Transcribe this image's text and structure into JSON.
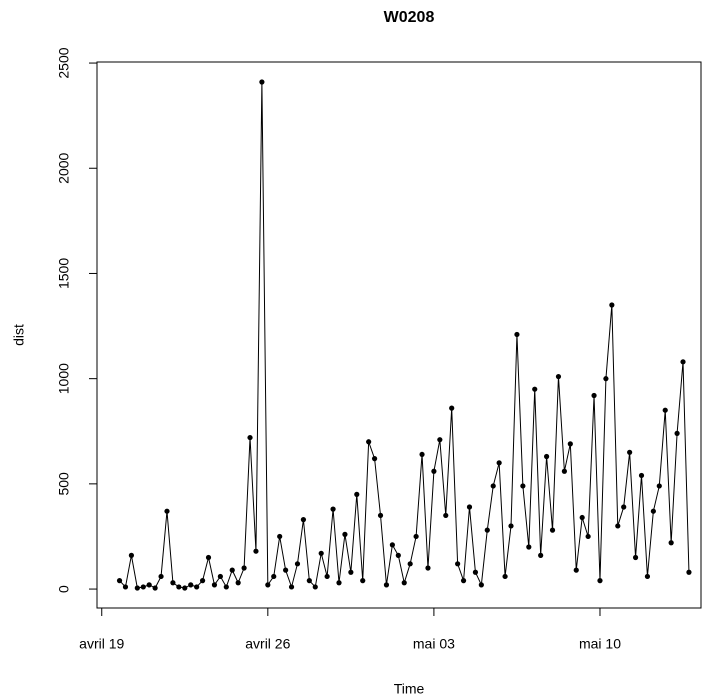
{
  "chart_data": {
    "type": "line",
    "title": "W0208",
    "x_label": "Time",
    "y_label": "dist",
    "x": [
      0.75,
      1,
      1.25,
      1.5,
      1.75,
      2,
      2.25,
      2.5,
      2.75,
      3,
      3.25,
      3.5,
      3.75,
      4,
      4.25,
      4.5,
      4.75,
      5,
      5.25,
      5.5,
      5.75,
      6,
      6.25,
      6.5,
      6.75,
      7,
      7.25,
      7.5,
      7.75,
      8,
      8.25,
      8.5,
      8.75,
      9,
      9.25,
      9.5,
      9.75,
      10,
      10.25,
      10.5,
      10.75,
      11,
      11.25,
      11.5,
      11.75,
      12,
      12.25,
      12.5,
      12.75,
      13,
      13.25,
      13.5,
      13.75,
      14,
      14.25,
      14.5,
      14.75,
      15,
      15.25,
      15.5,
      15.75,
      16,
      16.25,
      16.5,
      16.75,
      17,
      17.25,
      17.5,
      17.75,
      18,
      18.25,
      18.5,
      18.75,
      19,
      19.25,
      19.5,
      19.75,
      20,
      20.25,
      20.5,
      20.75,
      21,
      21.25,
      21.5,
      21.75,
      22,
      22.25,
      22.5,
      22.75,
      23,
      23.25,
      23.5,
      23.75,
      24,
      24.25,
      24.5,
      24.75
    ],
    "series": [
      {
        "color": "#000000",
        "values": [
          40,
          10,
          160,
          5,
          10,
          20,
          5,
          60,
          370,
          30,
          10,
          5,
          20,
          10,
          40,
          150,
          20,
          60,
          10,
          90,
          30,
          100,
          720,
          180,
          2410,
          20,
          60,
          250,
          90,
          10,
          120,
          330,
          40,
          10,
          170,
          60,
          380,
          30,
          260,
          80,
          450,
          40,
          700,
          620,
          350,
          20,
          210,
          160,
          30,
          120,
          250,
          640,
          100,
          560,
          710,
          350,
          860,
          120,
          40,
          390,
          80,
          20,
          280,
          490,
          600,
          60,
          300,
          1210,
          490,
          200,
          950,
          160,
          630,
          280,
          1010,
          560,
          690,
          90,
          340,
          250,
          920,
          40,
          1000,
          1350,
          300,
          390,
          650,
          150,
          540,
          60,
          370,
          490,
          850,
          220,
          740,
          1080,
          80
        ]
      }
    ],
    "xlim": [
      -0.2,
      25.3
    ],
    "xticks": [
      {
        "value": 0,
        "label": "avril 19"
      },
      {
        "value": 7,
        "label": "avril 26"
      },
      {
        "value": 14,
        "label": "mai 03"
      },
      {
        "value": 21,
        "label": "mai 10"
      }
    ],
    "ylim": [
      -90,
      2505
    ],
    "yticks": [
      0,
      500,
      1000,
      1500,
      2000,
      2500
    ]
  }
}
